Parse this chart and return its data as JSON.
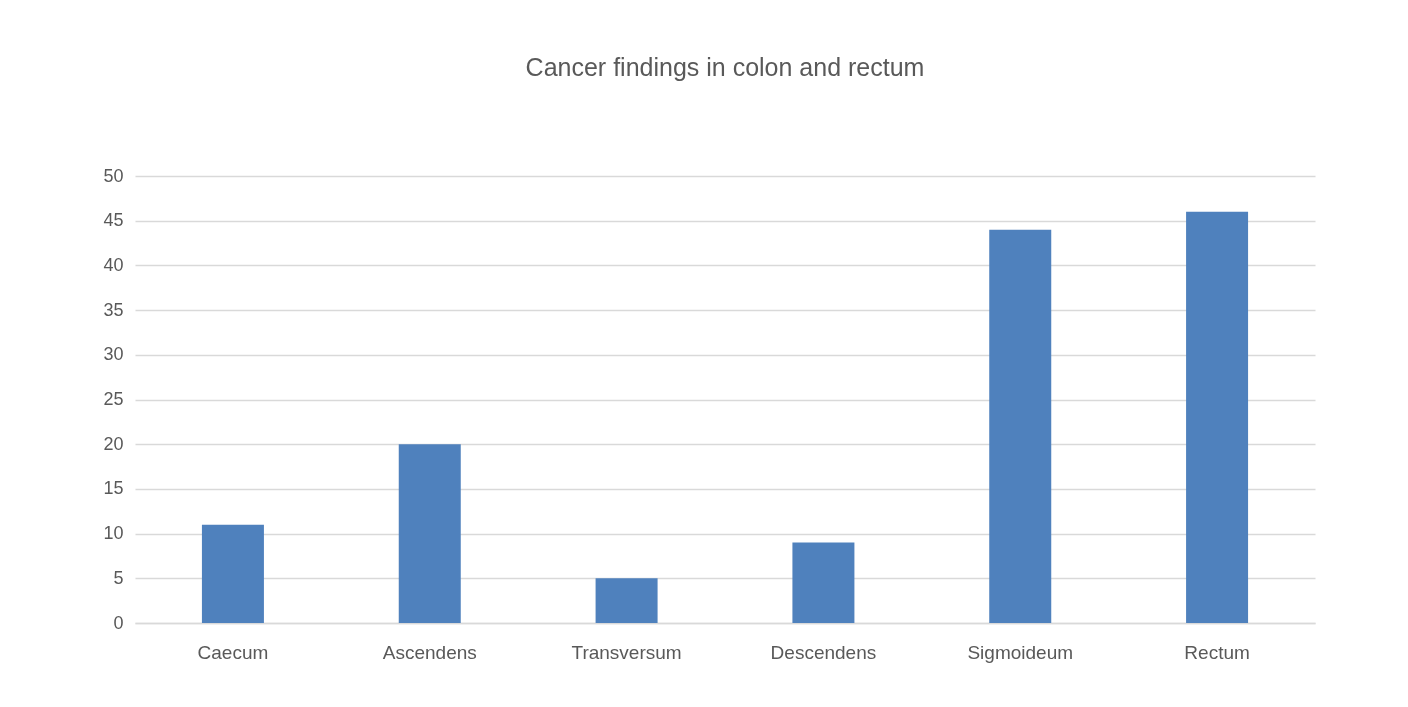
{
  "chart_data": {
    "type": "bar",
    "title": "Cancer findings in colon and rectum",
    "categories": [
      "Caecum",
      "Ascendens",
      "Transversum",
      "Descendens",
      "Sigmoideum",
      "Rectum"
    ],
    "values": [
      11,
      20,
      5,
      9,
      44,
      46
    ],
    "color": "#4f81bd",
    "ylim": [
      0,
      50
    ],
    "yticks": [
      0,
      5,
      10,
      15,
      20,
      25,
      30,
      35,
      40,
      45,
      50
    ],
    "grid": "y"
  }
}
